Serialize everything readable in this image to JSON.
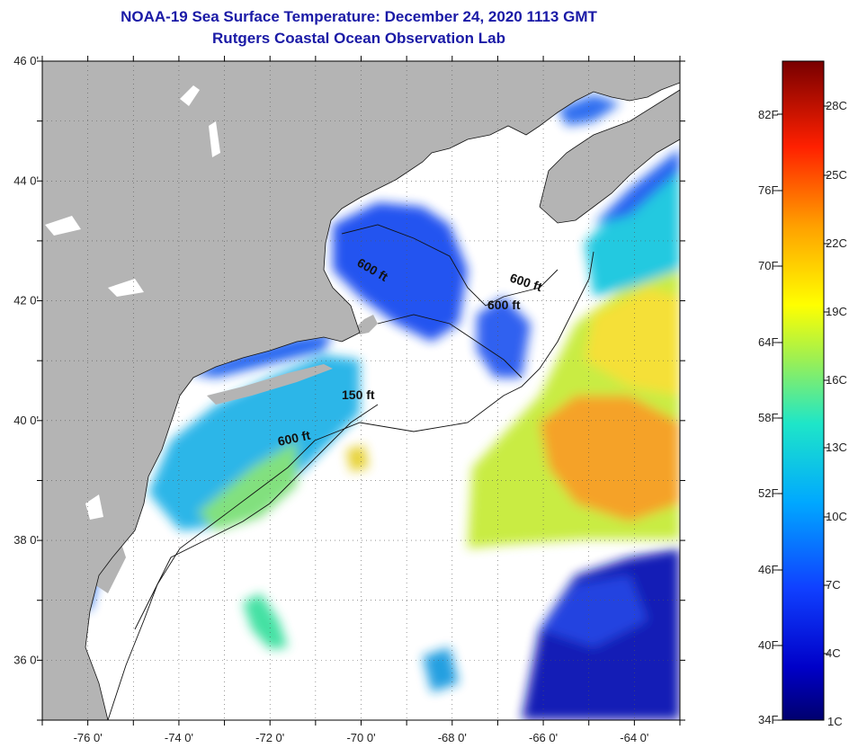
{
  "header": {
    "title": "NOAA-19 Sea Surface Temperature:  December 24, 2020 1113 GMT",
    "subtitle": "Rutgers Coastal Ocean Observation Lab"
  },
  "axes": {
    "lat_labels": [
      "46 0'",
      "44 0'",
      "42 0'",
      "40 0'",
      "38 0'",
      "36 0'"
    ],
    "lat_values": [
      46,
      44,
      42,
      40,
      38,
      36
    ],
    "lon_labels": [
      "-76 0'",
      "-74 0'",
      "-72 0'",
      "-70 0'",
      "-68 0'",
      "-66 0'",
      "-64 0'"
    ],
    "lon_values": [
      -76,
      -74,
      -72,
      -70,
      -68,
      -66,
      -64
    ],
    "lat_range": [
      35,
      46
    ],
    "lon_range": [
      -77,
      -63
    ]
  },
  "contours": [
    {
      "label": "600 ft"
    },
    {
      "label": "600 ft"
    },
    {
      "label": "600 ft"
    },
    {
      "label": "150 ft"
    },
    {
      "label": "600 ft"
    }
  ],
  "colorbar": {
    "fahrenheit": [
      "82F",
      "76F",
      "70F",
      "64F",
      "58F",
      "52F",
      "46F",
      "40F",
      "34F"
    ],
    "celsius": [
      "28C",
      "25C",
      "22C",
      "19C",
      "16C",
      "13C",
      "10C",
      "7C",
      "4C",
      "1C"
    ]
  },
  "colors": {
    "land": "#b4b4b4",
    "ocean_no_data": "#ffffff",
    "title": "#1a1aa6"
  }
}
